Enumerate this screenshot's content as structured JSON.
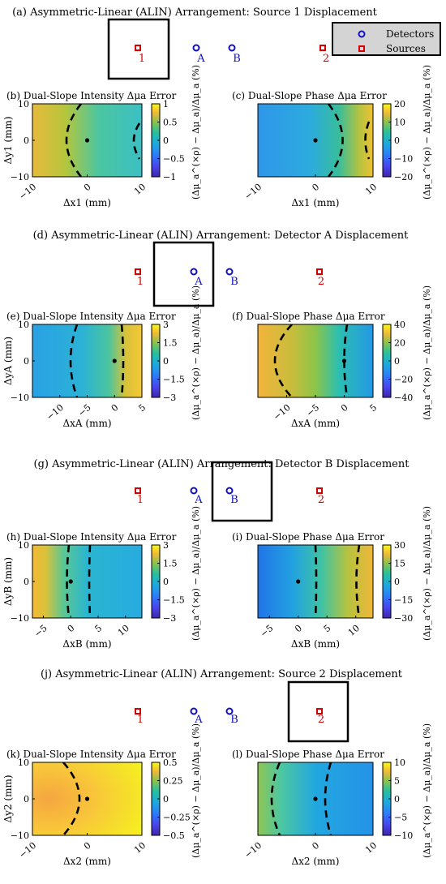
{
  "legend": {
    "detectors": "Detectors",
    "sources": "Sources"
  },
  "colors": {
    "source": "#d40000",
    "detector": "#1010c0"
  },
  "labels": {
    "source1": "1",
    "source2": "2",
    "detA": "A",
    "detB": "B"
  },
  "arrangements": [
    {
      "title": "(a) Asymmetric-Linear (ALIN) Arrangement: Source 1 Displacement",
      "highlight": "source1"
    },
    {
      "title": "(d) Asymmetric-Linear (ALIN) Arrangement: Detector A Displacement",
      "highlight": "detA"
    },
    {
      "title": "(g) Asymmetric-Linear (ALIN) Arrangement: Detector B Displacement",
      "highlight": "detB"
    },
    {
      "title": "(j) Asymmetric-Linear (ALIN) Arrangement: Source 2 Displacement",
      "highlight": "source2"
    }
  ],
  "colorbar_label": "(Δμ_a^(×ρ) − Δμ_a)/Δμ_a (%)",
  "colormap": "parula",
  "chart_data": [
    {
      "type": "heatmap",
      "title": "(b) Dual-Slope Intensity Δμa Error",
      "xlabel": "Δx1 (mm)",
      "ylabel": "Δy1 (mm)",
      "xticks": [
        "−10",
        "0",
        "10"
      ],
      "yticks": [
        "10",
        "0",
        "−10"
      ],
      "xlim": [
        -10,
        10
      ],
      "ylim": [
        -10,
        10
      ],
      "cticks": [
        "1",
        "0.5",
        "0",
        "−0.5",
        "−1"
      ],
      "clim": [
        -1,
        1
      ],
      "marker": [
        0,
        0
      ]
    },
    {
      "type": "heatmap",
      "title": "(c) Dual-Slope Phase Δμa Error",
      "xlabel": "Δx1 (mm)",
      "ylabel": "",
      "xticks": [
        "−10",
        "0",
        "10"
      ],
      "yticks": [],
      "xlim": [
        -10,
        10
      ],
      "ylim": [
        -10,
        10
      ],
      "cticks": [
        "20",
        "10",
        "0",
        "−10",
        "−20"
      ],
      "clim": [
        -20,
        20
      ],
      "marker": [
        0,
        0
      ]
    },
    {
      "type": "heatmap",
      "title": "(e) Dual-Slope Intensity Δμa Error",
      "xlabel": "ΔxA (mm)",
      "ylabel": "ΔyA (mm)",
      "xticks": [
        "−10",
        "−5",
        "0",
        "5"
      ],
      "yticks": [
        "10",
        "0",
        "−10"
      ],
      "xlim": [
        -15,
        5
      ],
      "ylim": [
        -10,
        10
      ],
      "cticks": [
        "3",
        "1.5",
        "0",
        "−1.5",
        "−3"
      ],
      "clim": [
        -3,
        3
      ],
      "marker": [
        0,
        0
      ]
    },
    {
      "type": "heatmap",
      "title": "(f) Dual-Slope Phase Δμa Error",
      "xlabel": "ΔxA (mm)",
      "ylabel": "",
      "xticks": [
        "−10",
        "−5",
        "0",
        "5"
      ],
      "yticks": [],
      "xlim": [
        -15,
        5
      ],
      "ylim": [
        -10,
        10
      ],
      "cticks": [
        "40",
        "20",
        "0",
        "−20",
        "−40"
      ],
      "clim": [
        -40,
        40
      ],
      "marker": [
        0,
        0
      ]
    },
    {
      "type": "heatmap",
      "title": "(h) Dual-Slope Intensity Δμa Error",
      "xlabel": "ΔxB (mm)",
      "ylabel": "ΔyB (mm)",
      "xticks": [
        "−5",
        "0",
        "5",
        "10"
      ],
      "yticks": [
        "10",
        "0",
        "−10"
      ],
      "xlim": [
        -7,
        13
      ],
      "ylim": [
        -10,
        10
      ],
      "cticks": [
        "3",
        "1.5",
        "0",
        "−1.5",
        "−3"
      ],
      "clim": [
        -3,
        3
      ],
      "marker": [
        0,
        0
      ]
    },
    {
      "type": "heatmap",
      "title": "(i) Dual-Slope Phase Δμa Error",
      "xlabel": "ΔxB (mm)",
      "ylabel": "",
      "xticks": [
        "−5",
        "0",
        "5",
        "10"
      ],
      "yticks": [],
      "xlim": [
        -7,
        13
      ],
      "ylim": [
        -10,
        10
      ],
      "cticks": [
        "30",
        "15",
        "0",
        "−15",
        "−30"
      ],
      "clim": [
        -30,
        30
      ],
      "marker": [
        0,
        0
      ]
    },
    {
      "type": "heatmap",
      "title": "(k) Dual-Slope Intensity Δμa Error",
      "xlabel": "Δx2 (mm)",
      "ylabel": "Δy2 (mm)",
      "xticks": [
        "−10",
        "0",
        "10"
      ],
      "yticks": [
        "10",
        "0",
        "−10"
      ],
      "xlim": [
        -10,
        10
      ],
      "ylim": [
        -10,
        10
      ],
      "cticks": [
        "0.5",
        "0.25",
        "0",
        "−0.25",
        "−0.5"
      ],
      "clim": [
        -0.5,
        0.5
      ],
      "marker": [
        0,
        0
      ]
    },
    {
      "type": "heatmap",
      "title": "(l) Dual-Slope Phase Δμa Error",
      "xlabel": "Δx2 (mm)",
      "ylabel": "",
      "xticks": [
        "−10",
        "0",
        "10"
      ],
      "yticks": [],
      "xlim": [
        -10,
        10
      ],
      "ylim": [
        -10,
        10
      ],
      "cticks": [
        "10",
        "5",
        "0",
        "−5",
        "−10"
      ],
      "clim": [
        -10,
        10
      ],
      "marker": [
        0,
        0
      ]
    }
  ]
}
